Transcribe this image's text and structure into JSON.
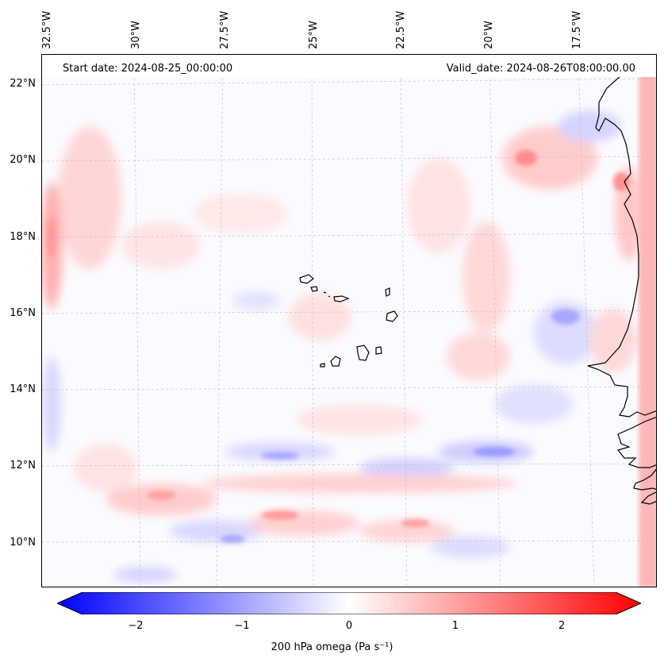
{
  "map": {
    "start_date": "Start date: 2024-08-25_00:00:00",
    "valid_date": "Valid_date: 2024-08-26T08:00:00.00",
    "lon_labels": [
      "32.5°W",
      "30°W",
      "27.5°W",
      "25°W",
      "22.5°W",
      "20°W",
      "17.5°W"
    ],
    "lat_labels": [
      "22°N",
      "20°N",
      "18°N",
      "16°N",
      "14°N",
      "12°N",
      "10°N"
    ],
    "features": [
      "coastline-west-africa",
      "cape-verde-islands"
    ]
  },
  "colorbar": {
    "label": "200 hPa omega (Pa s⁻¹)",
    "ticks": [
      "−2",
      "−1",
      "0",
      "1",
      "2"
    ],
    "range": [
      -2.5,
      2.5
    ],
    "cmap": "bwr",
    "colors": {
      "negative": "#0000ff",
      "neutral": "#ffffff",
      "positive": "#ff0000"
    }
  }
}
